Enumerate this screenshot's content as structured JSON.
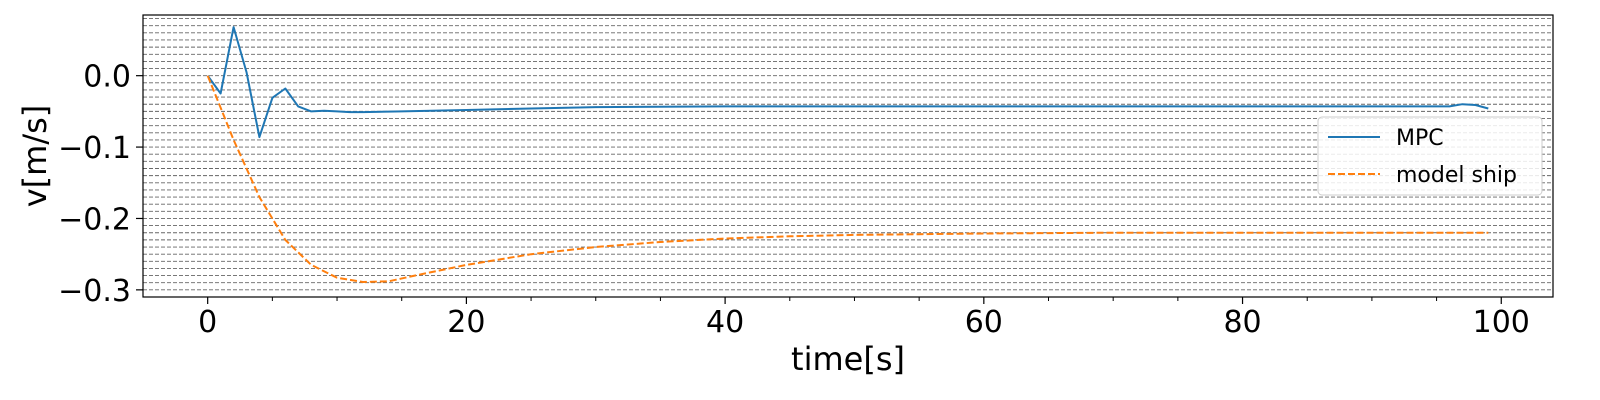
{
  "chart_data": {
    "type": "line",
    "xlabel": "time[s]",
    "ylabel": "v[m/s]",
    "xlim": [
      -5,
      104
    ],
    "ylim": [
      -0.31,
      0.085
    ],
    "x_major_ticks": [
      0,
      20,
      40,
      60,
      80,
      100
    ],
    "x_tick_labels": [
      "0",
      "20",
      "40",
      "60",
      "80",
      "100"
    ],
    "y_major_ticks": [
      0.0,
      -0.1,
      -0.2,
      -0.3
    ],
    "y_tick_labels": [
      "0.0",
      "−0.1",
      "−0.2",
      "−0.3"
    ],
    "y_grid_step": 0.01,
    "grid": true,
    "grid_style": "dashed horizontal minor gridlines",
    "legend_position": "center-right",
    "series": [
      {
        "name": "MPC",
        "color": "#1f77b4",
        "line_style": "solid",
        "x": [
          0,
          1,
          2,
          3,
          4,
          5,
          6,
          7,
          8,
          9,
          10,
          11,
          12,
          15,
          20,
          25,
          30,
          40,
          50,
          60,
          70,
          80,
          90,
          96,
          97,
          98,
          99
        ],
        "y": [
          0.0,
          -0.025,
          0.068,
          0.005,
          -0.086,
          -0.031,
          -0.018,
          -0.043,
          -0.05,
          -0.049,
          -0.05,
          -0.051,
          -0.051,
          -0.05,
          -0.048,
          -0.046,
          -0.044,
          -0.043,
          -0.043,
          -0.043,
          -0.043,
          -0.043,
          -0.043,
          -0.043,
          -0.04,
          -0.041,
          -0.046
        ]
      },
      {
        "name": "model ship",
        "color": "#ff7f0e",
        "line_style": "dashed",
        "x": [
          0,
          2,
          4,
          6,
          8,
          10,
          12,
          14,
          16,
          20,
          25,
          30,
          35,
          40,
          45,
          50,
          55,
          60,
          70,
          80,
          90,
          99
        ],
        "y": [
          0.0,
          -0.09,
          -0.17,
          -0.23,
          -0.265,
          -0.283,
          -0.289,
          -0.288,
          -0.28,
          -0.265,
          -0.25,
          -0.24,
          -0.233,
          -0.228,
          -0.225,
          -0.223,
          -0.222,
          -0.221,
          -0.22,
          -0.22,
          -0.22,
          -0.22
        ]
      }
    ]
  }
}
